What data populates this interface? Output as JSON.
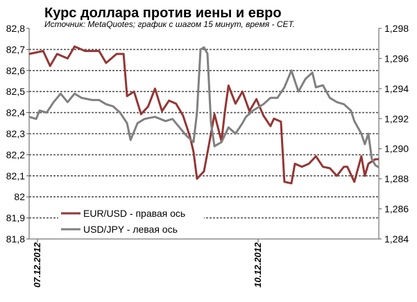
{
  "chart_data": {
    "type": "line",
    "title": "Курс доллара против иены и евро",
    "subtitle": "Источник: MetaQuotes; график с шагом 15 минут, время - CET.",
    "x_ticks": [
      "07.12.2012",
      "10.12.2012"
    ],
    "y_left": {
      "range": [
        81.8,
        82.8
      ],
      "ticks": [
        "82,8",
        "82,7",
        "82,6",
        "82,5",
        "82,4",
        "82,3",
        "82,2",
        "82,1",
        "82",
        "81,9",
        "81,8"
      ]
    },
    "y_right": {
      "range": [
        1.284,
        1.298
      ],
      "ticks": [
        "1,298",
        "1,296",
        "1,294",
        "1,292",
        "1,290",
        "1,288",
        "1,286",
        "1,284"
      ]
    },
    "grid": "dashed horizontal",
    "legend_position": "bottom-left",
    "series": [
      {
        "name": "EUR/USD - правая ось",
        "axis": "right",
        "color": "#943634",
        "points": [
          [
            0.0,
            1.2963
          ],
          [
            0.04,
            1.2965
          ],
          [
            0.06,
            1.2955
          ],
          [
            0.08,
            1.2963
          ],
          [
            0.11,
            1.296
          ],
          [
            0.13,
            1.2968
          ],
          [
            0.16,
            1.2965
          ],
          [
            0.2,
            1.2965
          ],
          [
            0.22,
            1.2957
          ],
          [
            0.25,
            1.2963
          ],
          [
            0.27,
            1.2963
          ],
          [
            0.28,
            1.2935
          ],
          [
            0.3,
            1.2938
          ],
          [
            0.32,
            1.2923
          ],
          [
            0.34,
            1.2928
          ],
          [
            0.36,
            1.294
          ],
          [
            0.38,
            1.2925
          ],
          [
            0.4,
            1.2932
          ],
          [
            0.42,
            1.293
          ],
          [
            0.44,
            1.2922
          ],
          [
            0.46,
            1.2908
          ],
          [
            0.47,
            1.2898
          ],
          [
            0.48,
            1.288
          ],
          [
            0.5,
            1.2885
          ],
          [
            0.52,
            1.291
          ],
          [
            0.53,
            1.2923
          ],
          [
            0.55,
            1.2905
          ],
          [
            0.56,
            1.2925
          ],
          [
            0.57,
            1.2942
          ],
          [
            0.59,
            1.293
          ],
          [
            0.61,
            1.2938
          ],
          [
            0.63,
            1.2925
          ],
          [
            0.65,
            1.2933
          ],
          [
            0.67,
            1.2922
          ],
          [
            0.69,
            1.2915
          ],
          [
            0.7,
            1.292
          ],
          [
            0.72,
            1.2918
          ],
          [
            0.73,
            1.2878
          ],
          [
            0.75,
            1.2877
          ],
          [
            0.76,
            1.289
          ],
          [
            0.78,
            1.2888
          ],
          [
            0.8,
            1.289
          ],
          [
            0.82,
            1.2895
          ],
          [
            0.84,
            1.2888
          ],
          [
            0.86,
            1.2887
          ],
          [
            0.88,
            1.2882
          ],
          [
            0.9,
            1.2888
          ],
          [
            0.91,
            1.2888
          ],
          [
            0.93,
            1.2878
          ],
          [
            0.95,
            1.2895
          ],
          [
            0.96,
            1.2882
          ],
          [
            0.97,
            1.289
          ],
          [
            0.99,
            1.2893
          ],
          [
            1.0,
            1.2893
          ]
        ]
      },
      {
        "name": "USD/JPY - левая ось",
        "axis": "left",
        "color": "#808080",
        "points": [
          [
            0.0,
            82.38
          ],
          [
            0.02,
            82.37
          ],
          [
            0.03,
            82.41
          ],
          [
            0.05,
            82.4
          ],
          [
            0.07,
            82.45
          ],
          [
            0.09,
            82.49
          ],
          [
            0.11,
            82.45
          ],
          [
            0.13,
            82.49
          ],
          [
            0.15,
            82.47
          ],
          [
            0.18,
            82.46
          ],
          [
            0.2,
            82.46
          ],
          [
            0.22,
            82.44
          ],
          [
            0.24,
            82.43
          ],
          [
            0.26,
            82.4
          ],
          [
            0.28,
            82.35
          ],
          [
            0.29,
            82.27
          ],
          [
            0.31,
            82.35
          ],
          [
            0.33,
            82.37
          ],
          [
            0.36,
            82.38
          ],
          [
            0.39,
            82.36
          ],
          [
            0.41,
            82.37
          ],
          [
            0.43,
            82.33
          ],
          [
            0.45,
            82.29
          ],
          [
            0.47,
            82.26
          ],
          [
            0.48,
            82.4
          ],
          [
            0.49,
            82.7
          ],
          [
            0.5,
            82.71
          ],
          [
            0.51,
            82.68
          ],
          [
            0.52,
            82.35
          ],
          [
            0.53,
            82.24
          ],
          [
            0.55,
            82.26
          ],
          [
            0.57,
            82.33
          ],
          [
            0.59,
            82.3
          ],
          [
            0.61,
            82.35
          ],
          [
            0.62,
            82.38
          ],
          [
            0.64,
            82.41
          ],
          [
            0.66,
            82.43
          ],
          [
            0.67,
            82.44
          ],
          [
            0.69,
            82.47
          ],
          [
            0.71,
            82.47
          ],
          [
            0.73,
            82.52
          ],
          [
            0.75,
            82.6
          ],
          [
            0.76,
            82.55
          ],
          [
            0.77,
            82.5
          ],
          [
            0.79,
            82.56
          ],
          [
            0.81,
            82.59
          ],
          [
            0.82,
            82.52
          ],
          [
            0.84,
            82.53
          ],
          [
            0.86,
            82.47
          ],
          [
            0.88,
            82.45
          ],
          [
            0.9,
            82.44
          ],
          [
            0.92,
            82.41
          ],
          [
            0.93,
            82.36
          ],
          [
            0.95,
            82.3
          ],
          [
            0.96,
            82.25
          ],
          [
            0.97,
            82.3
          ],
          [
            0.98,
            82.18
          ],
          [
            0.99,
            82.15
          ],
          [
            1.0,
            82.14
          ]
        ]
      }
    ]
  }
}
